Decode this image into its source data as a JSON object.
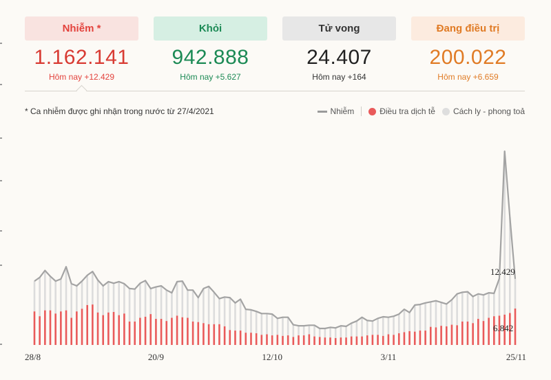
{
  "tabs": [
    {
      "key": "infected",
      "label": "Nhiễm *",
      "total": "1.162.141",
      "today_text": "Hôm nay +12.429",
      "header_bg": "#f9e3e0",
      "color": "#e3423c",
      "total_color": "#d83b33"
    },
    {
      "key": "recovered",
      "label": "Khỏi",
      "total": "942.888",
      "today_text": "Hôm nay +5.627",
      "header_bg": "#d6efe3",
      "color": "#1c8a55",
      "total_color": "#1c8a55"
    },
    {
      "key": "deaths",
      "label": "Tử vong",
      "total": "24.407",
      "today_text": "Hôm nay +164",
      "header_bg": "#e7e7e7",
      "color": "#333333",
      "total_color": "#222222"
    },
    {
      "key": "treating",
      "label": "Đang điều trị",
      "total": "200.022",
      "today_text": "Hôm nay +6.659",
      "header_bg": "#fcebdf",
      "color": "#e07b25",
      "total_color": "#e07b25"
    }
  ],
  "note": "* Ca nhiễm được ghi nhận trong nước từ 27/4/2021",
  "legend": [
    {
      "label": "Nhiễm",
      "swatch": "line",
      "color": "#9a9a9a"
    },
    {
      "label": "Điều tra dịch tễ",
      "swatch": "dot",
      "color": "#e95a5a"
    },
    {
      "label": "Cách ly - phong toả",
      "swatch": "dot",
      "color": "#dedede"
    }
  ],
  "chart_data": {
    "type": "bar",
    "title": "",
    "xlabel": "",
    "ylabel": "",
    "x_tick_labels": [
      "28/8",
      "20/9",
      "12/10",
      "3/11",
      "25/11"
    ],
    "x_tick_index": [
      0,
      23,
      45,
      67,
      89
    ],
    "ylim": [
      0,
      39000
    ],
    "annotations": [
      "12.429",
      "6.842"
    ],
    "colors": {
      "total_line": "#a3a3a3",
      "community": "#e95a5a",
      "quarantine": "#dcdcdc"
    },
    "series": [
      {
        "name": "Nhiễm",
        "values": [
          12000,
          12700,
          14000,
          12900,
          12000,
          12400,
          14700,
          11500,
          11100,
          12000,
          13100,
          13800,
          12200,
          11100,
          11900,
          11600,
          11900,
          11500,
          10600,
          10500,
          11600,
          12100,
          10600,
          10900,
          11100,
          10300,
          9800,
          11900,
          12000,
          10300,
          10300,
          8900,
          10600,
          11000,
          9900,
          8700,
          9000,
          8900,
          7900,
          8600,
          6700,
          6600,
          6300,
          5900,
          5900,
          5800,
          5000,
          5200,
          5200,
          3800,
          3600,
          3600,
          3700,
          3700,
          3100,
          3100,
          3300,
          3200,
          3600,
          3500,
          4100,
          4500,
          5200,
          4600,
          4500,
          5000,
          5300,
          5200,
          5400,
          5800,
          6700,
          6100,
          7500,
          7600,
          7900,
          8100,
          8300,
          8000,
          7700,
          8500,
          9600,
          9900,
          10000,
          9100,
          9600,
          9400,
          9800,
          9700,
          12500,
          36400,
          24000,
          12429
        ]
      },
      {
        "name": "Điều tra dịch tễ",
        "values": [
          6300,
          5400,
          6500,
          6500,
          5900,
          6300,
          6500,
          5100,
          6300,
          6800,
          7500,
          7600,
          6100,
          5600,
          6100,
          6200,
          5600,
          5900,
          4400,
          4400,
          5100,
          5300,
          5800,
          4900,
          4900,
          4500,
          5100,
          5500,
          5200,
          5100,
          4400,
          4300,
          4100,
          3900,
          3900,
          3900,
          3500,
          2800,
          2700,
          2700,
          2300,
          2300,
          2200,
          1900,
          2000,
          1800,
          1900,
          1700,
          1800,
          1500,
          1800,
          1800,
          2000,
          1600,
          1500,
          1400,
          1400,
          1300,
          1400,
          1400,
          1600,
          1600,
          1600,
          1800,
          1900,
          1900,
          1700,
          2000,
          1900,
          2200,
          2400,
          2600,
          2500,
          2700,
          2700,
          3400,
          3300,
          3600,
          3500,
          3800,
          3700,
          4400,
          4400,
          4100,
          4900,
          4500,
          5100,
          5400,
          5500,
          5700,
          6000,
          6842
        ]
      }
    ]
  }
}
